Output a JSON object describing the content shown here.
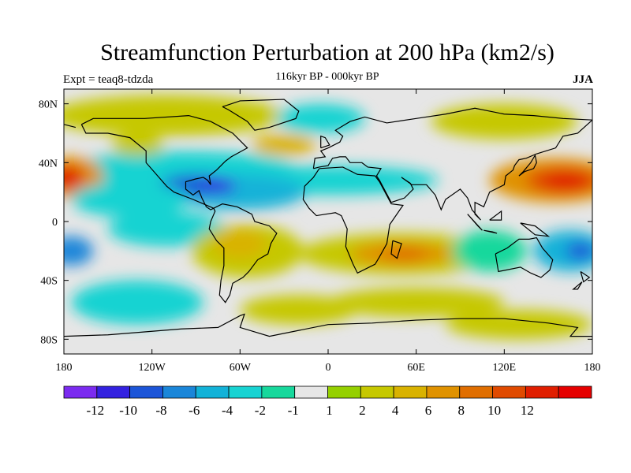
{
  "title": "Streamfunction Perturbation at 200 hPa (km2/s)",
  "subtitle": "116kyr BP - 000kyr BP",
  "left_string": "Expt = teaq8-tdzda",
  "right_string": "JJA",
  "lat_labels": [
    "80N",
    "40N",
    "0",
    "40S",
    "80S"
  ],
  "lon_labels": [
    "180",
    "120W",
    "60W",
    "0",
    "60E",
    "120E",
    "180"
  ],
  "colorbar": {
    "colors": [
      "#7b2bf0",
      "#3321e0",
      "#1c55d8",
      "#1a86d9",
      "#12b2d8",
      "#17d3d2",
      "#17d89c",
      "#e6e6e6",
      "#95d000",
      "#c6c800",
      "#d9b200",
      "#e09200",
      "#e06e00",
      "#e04a00",
      "#e01e00",
      "#e50000"
    ],
    "labels": [
      "-12",
      "-10",
      "-8",
      "-6",
      "-4",
      "-2",
      "-1",
      "1",
      "2",
      "4",
      "6",
      "8",
      "10",
      "12"
    ]
  },
  "chart_data": {
    "type": "heatmap",
    "title": "Streamfunction Perturbation at 200 hPa (km2/s)",
    "subtitle": "116kyr BP - 000kyr BP",
    "season": "JJA",
    "experiment": "teaq8-tdzda",
    "x_range": [
      -180,
      180
    ],
    "y_range": [
      -90,
      90
    ],
    "levels": [
      -12,
      -10,
      -8,
      -6,
      -4,
      -2,
      -1,
      1,
      2,
      4,
      6,
      8,
      10,
      12
    ],
    "features": [
      {
        "lon": -168,
        "lat": 32,
        "value": 13,
        "kind": "positive max, N Pacific east"
      },
      {
        "lon": 155,
        "lat": 28,
        "value": 13,
        "kind": "positive max, NW Pacific / Asia"
      },
      {
        "lon": 50,
        "lat": -22,
        "value": 8,
        "kind": "positive max, S Africa / Indian Ocean"
      },
      {
        "lon": -100,
        "lat": 25,
        "value": -10,
        "kind": "negative min, Gulf of Mexico"
      },
      {
        "lon": -80,
        "lat": 25,
        "value": -11,
        "kind": "negative min, Caribbean"
      },
      {
        "lon": 170,
        "lat": -20,
        "value": -9,
        "kind": "negative min, SW Pacific"
      },
      {
        "lon": -175,
        "lat": -20,
        "value": -7,
        "kind": "negative min, S Pacific"
      },
      {
        "lon": -20,
        "lat": 30,
        "value": -6,
        "kind": "negative, N Atlantic"
      },
      {
        "lon": -60,
        "lat": -20,
        "value": 5,
        "kind": "positive, South America"
      },
      {
        "lon": -30,
        "lat": 52,
        "value": 4,
        "kind": "positive, N Atlantic high"
      },
      {
        "lon": -120,
        "lat": 55,
        "value": 3,
        "kind": "positive, N America"
      },
      {
        "lon": 60,
        "lat": -55,
        "value": 3,
        "kind": "positive, Southern Ocean"
      },
      {
        "lon": 10,
        "lat": 70,
        "value": -3,
        "kind": "negative, Arctic Europe"
      },
      {
        "lon": -150,
        "lat": -50,
        "value": -3,
        "kind": "negative, S Pacific high lat"
      }
    ]
  }
}
